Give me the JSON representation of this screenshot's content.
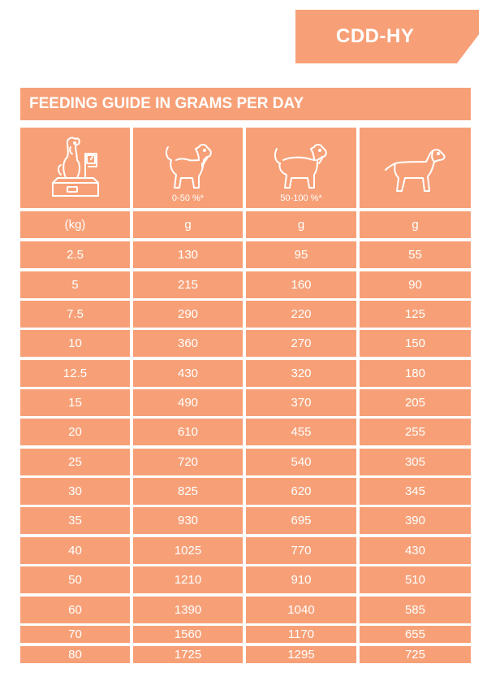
{
  "product_code": "CDD-HY",
  "title": "FEEDING GUIDE IN GRAMS PER DAY",
  "header": {
    "icons": [
      "dog-on-scale-icon",
      "small-dog-icon",
      "medium-dog-icon",
      "dog-icon"
    ],
    "overweight_labels": [
      "",
      "0-50 %*",
      "50-100 %*",
      ""
    ]
  },
  "units": [
    "(kg)",
    "g",
    "g",
    "g"
  ],
  "rows": [
    [
      "2.5",
      "130",
      "95",
      "55"
    ],
    [
      "5",
      "215",
      "160",
      "90"
    ],
    [
      "7.5",
      "290",
      "220",
      "125"
    ],
    [
      "10",
      "360",
      "270",
      "150"
    ],
    [
      "12.5",
      "430",
      "320",
      "180"
    ],
    [
      "15",
      "490",
      "370",
      "205"
    ],
    [
      "20",
      "610",
      "455",
      "255"
    ],
    [
      "25",
      "720",
      "540",
      "305"
    ],
    [
      "30",
      "825",
      "620",
      "345"
    ],
    [
      "35",
      "930",
      "695",
      "390"
    ],
    [
      "40",
      "1025",
      "770",
      "430"
    ],
    [
      "50",
      "1210",
      "910",
      "510"
    ],
    [
      "60",
      "1390",
      "1040",
      "585"
    ],
    [
      "70",
      "1560",
      "1170",
      "655"
    ],
    [
      "80",
      "1725",
      "1295",
      "725"
    ]
  ],
  "colors": {
    "accent": "#f7a077",
    "text": "#ffffff"
  }
}
